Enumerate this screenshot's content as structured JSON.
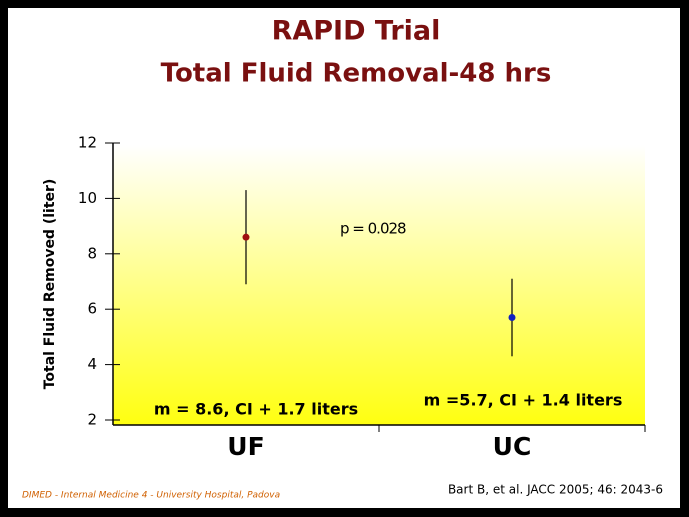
{
  "chart_data": {
    "type": "errorbar",
    "title": "RAPID Trial",
    "subtitle": "Total Fluid Removal-48 hrs",
    "y_label": "Total Fluid Removed (liter)",
    "categories": [
      "UF",
      "UC"
    ],
    "values": [
      8.6,
      5.7
    ],
    "errors": [
      1.7,
      1.4
    ],
    "colors": [
      "#a01010",
      "#1020c0"
    ],
    "ylim": [
      2,
      12
    ],
    "yticks": [
      2,
      4,
      6,
      8,
      10,
      12
    ],
    "annotations": [
      "p = 0.028",
      "m = 8.6, CI + 1.7 liters",
      "m =5.7, CI + 1.4 liters"
    ],
    "footer_left": "DIMED - Internal Medicine 4 - University Hospital, Padova",
    "footer_right": "Bart B, et al. JACC 2005; 46: 2043-6"
  }
}
